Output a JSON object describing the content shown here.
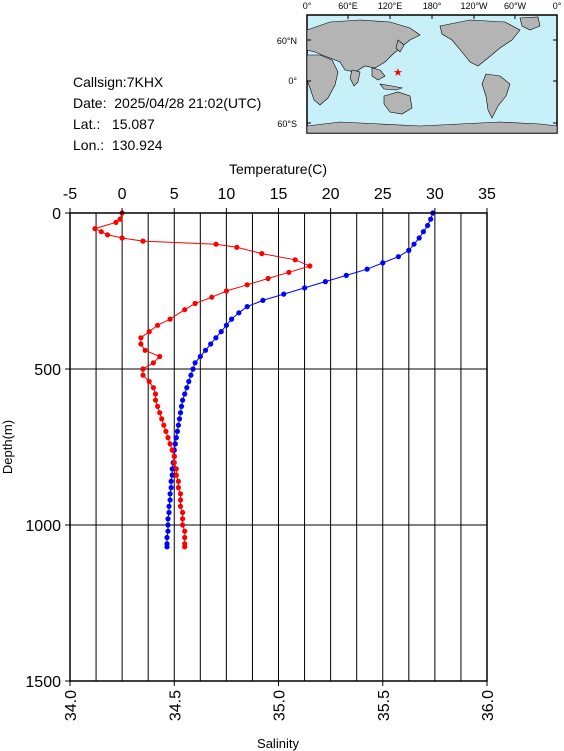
{
  "station": {
    "callsign": "Callsign:7KHX",
    "date": "Date:  2025/04/28 21:02(UTC)",
    "lat": "Lat.:   15.087",
    "lon": "Lon.:  130.924"
  },
  "map": {
    "lon_labels": [
      "0°",
      "60°E",
      "120°E",
      "180°",
      "120°W",
      "60°W",
      "0°"
    ],
    "lat_labels": [
      "60°N",
      "0°",
      "60°S"
    ],
    "station_marker": {
      "lat": 15.087,
      "lon": 130.924,
      "symbol": "★",
      "color": "#ff0000"
    },
    "ocean_color": "#c8f0f8",
    "land_color": "#b4b4b4"
  },
  "chart_data": {
    "type": "line",
    "ylabel": "Depth(m)",
    "ylim": [
      1500,
      0
    ],
    "yticks": [
      "0",
      "500",
      "1000",
      "1500"
    ],
    "ytick_values": [
      0,
      500,
      1000,
      1500
    ],
    "top_axis": {
      "label": "Temperature(C)",
      "lim": [
        -5,
        35
      ],
      "ticks": [
        "-5",
        "0",
        "5",
        "10",
        "15",
        "20",
        "25",
        "30",
        "35"
      ],
      "tick_values": [
        -5,
        0,
        5,
        10,
        15,
        20,
        25,
        30,
        35
      ]
    },
    "bottom_axis": {
      "label": "Salinity",
      "lim": [
        34.0,
        36.0
      ],
      "ticks": [
        "34.0",
        "34.5",
        "35.0",
        "35.5",
        "36.0"
      ],
      "tick_values": [
        34.0,
        34.5,
        35.0,
        35.5,
        36.0
      ]
    },
    "grid": true,
    "series": [
      {
        "axis": "temperature",
        "color": "#0000ff",
        "points": [
          [
            29.8,
            0
          ],
          [
            29.6,
            20
          ],
          [
            29.3,
            40
          ],
          [
            28.9,
            60
          ],
          [
            28.5,
            80
          ],
          [
            28.0,
            100
          ],
          [
            27.5,
            120
          ],
          [
            26.5,
            140
          ],
          [
            25.0,
            160
          ],
          [
            23.5,
            180
          ],
          [
            21.5,
            200
          ],
          [
            19.5,
            220
          ],
          [
            17.5,
            240
          ],
          [
            15.5,
            260
          ],
          [
            13.5,
            280
          ],
          [
            12.0,
            300
          ],
          [
            11.2,
            320
          ],
          [
            10.5,
            340
          ],
          [
            10.0,
            360
          ],
          [
            9.5,
            380
          ],
          [
            9.0,
            400
          ],
          [
            8.5,
            420
          ],
          [
            8.0,
            440
          ],
          [
            7.5,
            460
          ],
          [
            7.0,
            480
          ],
          [
            6.8,
            500
          ],
          [
            6.6,
            520
          ],
          [
            6.4,
            540
          ],
          [
            6.2,
            560
          ],
          [
            6.0,
            580
          ],
          [
            5.8,
            600
          ],
          [
            5.7,
            620
          ],
          [
            5.6,
            640
          ],
          [
            5.5,
            660
          ],
          [
            5.4,
            680
          ],
          [
            5.3,
            700
          ],
          [
            5.2,
            720
          ],
          [
            5.1,
            740
          ],
          [
            5.0,
            760
          ],
          [
            5.0,
            780
          ],
          [
            4.9,
            800
          ],
          [
            4.8,
            820
          ],
          [
            4.8,
            840
          ],
          [
            4.7,
            860
          ],
          [
            4.7,
            880
          ],
          [
            4.6,
            900
          ],
          [
            4.6,
            920
          ],
          [
            4.5,
            940
          ],
          [
            4.5,
            960
          ],
          [
            4.4,
            980
          ],
          [
            4.4,
            1000
          ],
          [
            4.4,
            1020
          ],
          [
            4.3,
            1040
          ],
          [
            4.3,
            1060
          ],
          [
            4.3,
            1070
          ]
        ]
      },
      {
        "axis": "salinity",
        "color": "#ff0000",
        "points": [
          [
            34.25,
            0
          ],
          [
            34.24,
            20
          ],
          [
            34.22,
            30
          ],
          [
            34.12,
            50
          ],
          [
            34.15,
            60
          ],
          [
            34.18,
            70
          ],
          [
            34.25,
            80
          ],
          [
            34.35,
            90
          ],
          [
            34.7,
            100
          ],
          [
            34.8,
            110
          ],
          [
            34.92,
            130
          ],
          [
            35.08,
            150
          ],
          [
            35.15,
            170
          ],
          [
            35.05,
            190
          ],
          [
            34.95,
            210
          ],
          [
            34.85,
            230
          ],
          [
            34.75,
            250
          ],
          [
            34.68,
            270
          ],
          [
            34.6,
            290
          ],
          [
            34.55,
            310
          ],
          [
            34.48,
            340
          ],
          [
            34.42,
            360
          ],
          [
            34.38,
            380
          ],
          [
            34.34,
            400
          ],
          [
            34.34,
            420
          ],
          [
            34.36,
            440
          ],
          [
            34.43,
            460
          ],
          [
            34.4,
            480
          ],
          [
            34.35,
            500
          ],
          [
            34.35,
            520
          ],
          [
            34.38,
            540
          ],
          [
            34.4,
            560
          ],
          [
            34.41,
            580
          ],
          [
            34.41,
            600
          ],
          [
            34.42,
            620
          ],
          [
            34.43,
            640
          ],
          [
            34.44,
            660
          ],
          [
            34.45,
            680
          ],
          [
            34.46,
            700
          ],
          [
            34.47,
            720
          ],
          [
            34.48,
            740
          ],
          [
            34.49,
            760
          ],
          [
            34.5,
            780
          ],
          [
            34.5,
            800
          ],
          [
            34.51,
            820
          ],
          [
            34.51,
            840
          ],
          [
            34.52,
            860
          ],
          [
            34.52,
            880
          ],
          [
            34.53,
            900
          ],
          [
            34.53,
            920
          ],
          [
            34.53,
            940
          ],
          [
            34.54,
            960
          ],
          [
            34.54,
            980
          ],
          [
            34.54,
            1000
          ],
          [
            34.55,
            1020
          ],
          [
            34.55,
            1040
          ],
          [
            34.55,
            1060
          ],
          [
            34.55,
            1070
          ]
        ]
      }
    ]
  }
}
